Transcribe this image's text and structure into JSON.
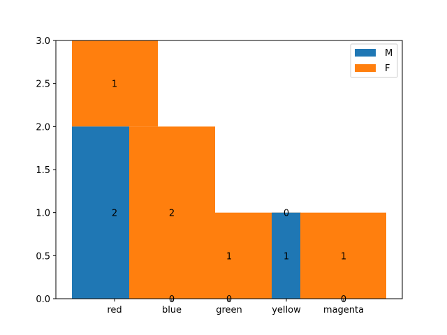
{
  "chart_data": {
    "type": "bar",
    "stacked": true,
    "categories": [
      "red",
      "blue",
      "green",
      "yellow",
      "magenta"
    ],
    "series": [
      {
        "name": "M",
        "color": "#1f77b4",
        "values": [
          2,
          0,
          0,
          1,
          0
        ]
      },
      {
        "name": "F",
        "color": "#ff7f0e",
        "values": [
          1,
          2,
          1,
          0,
          1
        ]
      }
    ],
    "ylim": [
      0,
      3.0
    ],
    "yticks": [
      "0.0",
      "0.5",
      "1.0",
      "1.5",
      "2.0",
      "2.5",
      "3.0"
    ],
    "legend": "top-right",
    "grid": false,
    "title": "",
    "xlabel": "",
    "ylabel": ""
  }
}
